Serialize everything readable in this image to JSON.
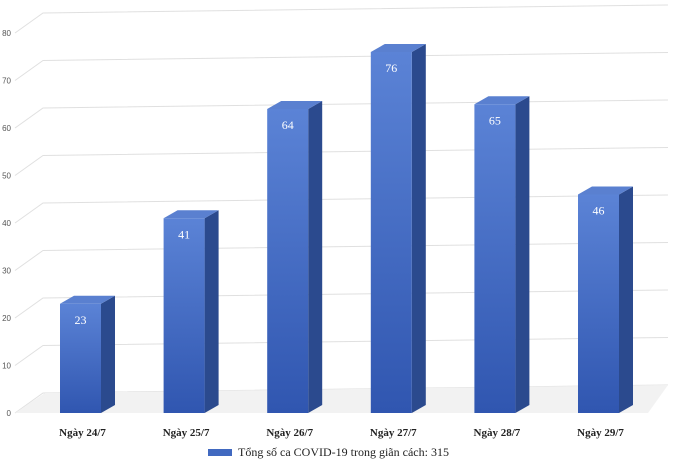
{
  "chart_data": {
    "type": "bar",
    "categories": [
      "Ngày 24/7",
      "Ngày 25/7",
      "Ngày 26/7",
      "Ngày 27/7",
      "Ngày 28/7",
      "Ngày 29/7"
    ],
    "series": [
      {
        "name": "Tổng số ca COVID-19 trong giãn cách: 315",
        "values": [
          23,
          41,
          64,
          76,
          65,
          46
        ]
      }
    ],
    "ylim": [
      0,
      80
    ],
    "yticks": [
      0,
      10,
      20,
      30,
      40,
      50,
      60,
      70,
      80
    ],
    "grid": true,
    "legend_position": "bottom",
    "bar_color": "#4169c0",
    "bar_side_color": "#2b4a8e",
    "bar_top_color": "#5a80d0"
  }
}
